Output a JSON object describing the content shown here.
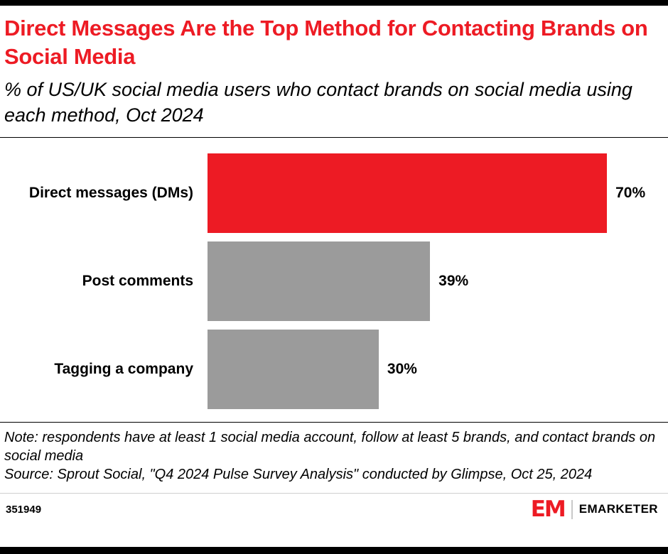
{
  "chart_data": {
    "type": "bar",
    "orientation": "horizontal",
    "title": "Direct Messages Are the Top Method for Contacting Brands on Social Media",
    "subtitle": "% of US/UK social media users who contact brands on social media using each method, Oct 2024",
    "categories": [
      "Direct messages (DMs)",
      "Post comments",
      "Tagging a company"
    ],
    "values": [
      70,
      39,
      30
    ],
    "value_labels": [
      "70%",
      "39%",
      "30%"
    ],
    "xlim": [
      0,
      100
    ],
    "bar_colors": [
      "#ED1B24",
      "#9b9b9b",
      "#9b9b9b"
    ],
    "grid": false,
    "legend": "none"
  },
  "note_text": "Note: respondents have at least 1 social media account, follow at least 5 brands, and contact brands on social media",
  "source_text": "Source: Sprout Social, \"Q4 2024 Pulse Survey Analysis\" conducted by Glimpse, Oct 25, 2024",
  "footer": {
    "chart_id": "351949",
    "logo_mark": "EM",
    "brand_name": "EMARKETER"
  },
  "colors": {
    "accent_red": "#ED1B24",
    "bar_gray": "#9b9b9b",
    "bar_black": "#000000"
  }
}
